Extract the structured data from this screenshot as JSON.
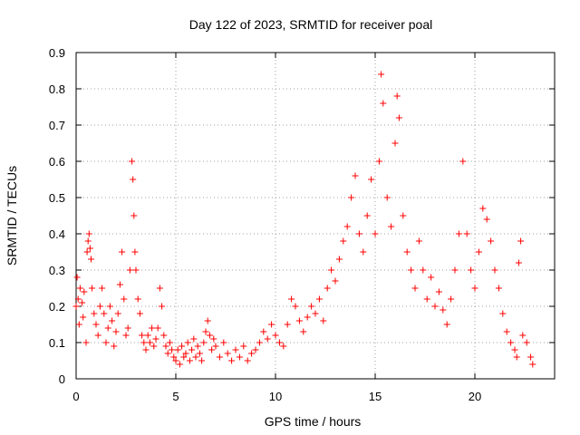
{
  "chart_data": {
    "type": "scatter",
    "title": "Day 122 of 2023, SRMTID for receiver poal",
    "xlabel": "GPS time / hours",
    "ylabel": "SRMTID / TECUs",
    "xlim": [
      0,
      24
    ],
    "ylim": [
      0,
      0.9
    ],
    "xticks": [
      0,
      5,
      10,
      15,
      20
    ],
    "yticks": [
      0,
      0.1,
      0.2,
      0.3,
      0.4,
      0.5,
      0.6,
      0.7,
      0.8,
      0.9
    ],
    "ytick_labels": [
      "0",
      "0.1",
      "0.2",
      "0.3",
      "0.4",
      "0.5",
      "0.6",
      "0.7",
      "0.8",
      "0.9"
    ],
    "grid": true,
    "marker": "+",
    "color": "#ff0000",
    "series": [
      {
        "name": "SRMTID",
        "points": [
          [
            0.0,
            0.2
          ],
          [
            0.05,
            0.28
          ],
          [
            0.1,
            0.22
          ],
          [
            0.15,
            0.15
          ],
          [
            0.2,
            0.25
          ],
          [
            0.3,
            0.21
          ],
          [
            0.35,
            0.17
          ],
          [
            0.4,
            0.24
          ],
          [
            0.5,
            0.1
          ],
          [
            0.55,
            0.35
          ],
          [
            0.6,
            0.38
          ],
          [
            0.65,
            0.4
          ],
          [
            0.7,
            0.36
          ],
          [
            0.75,
            0.33
          ],
          [
            0.8,
            0.25
          ],
          [
            0.9,
            0.18
          ],
          [
            1.0,
            0.15
          ],
          [
            1.1,
            0.12
          ],
          [
            1.2,
            0.2
          ],
          [
            1.3,
            0.25
          ],
          [
            1.4,
            0.18
          ],
          [
            1.5,
            0.1
          ],
          [
            1.6,
            0.14
          ],
          [
            1.7,
            0.2
          ],
          [
            1.8,
            0.16
          ],
          [
            1.9,
            0.09
          ],
          [
            2.0,
            0.13
          ],
          [
            2.1,
            0.18
          ],
          [
            2.2,
            0.26
          ],
          [
            2.3,
            0.35
          ],
          [
            2.4,
            0.22
          ],
          [
            2.5,
            0.12
          ],
          [
            2.6,
            0.14
          ],
          [
            2.7,
            0.3
          ],
          [
            2.8,
            0.6
          ],
          [
            2.85,
            0.55
          ],
          [
            2.9,
            0.45
          ],
          [
            2.95,
            0.35
          ],
          [
            3.0,
            0.3
          ],
          [
            3.1,
            0.22
          ],
          [
            3.2,
            0.18
          ],
          [
            3.3,
            0.12
          ],
          [
            3.4,
            0.1
          ],
          [
            3.5,
            0.08
          ],
          [
            3.6,
            0.12
          ],
          [
            3.7,
            0.1
          ],
          [
            3.8,
            0.14
          ],
          [
            3.9,
            0.09
          ],
          [
            4.0,
            0.11
          ],
          [
            4.1,
            0.14
          ],
          [
            4.2,
            0.25
          ],
          [
            4.3,
            0.2
          ],
          [
            4.4,
            0.12
          ],
          [
            4.5,
            0.09
          ],
          [
            4.6,
            0.07
          ],
          [
            4.7,
            0.1
          ],
          [
            4.8,
            0.08
          ],
          [
            4.9,
            0.06
          ],
          [
            5.0,
            0.05
          ],
          [
            5.1,
            0.08
          ],
          [
            5.2,
            0.04
          ],
          [
            5.3,
            0.09
          ],
          [
            5.4,
            0.06
          ],
          [
            5.5,
            0.07
          ],
          [
            5.6,
            0.1
          ],
          [
            5.7,
            0.05
          ],
          [
            5.8,
            0.08
          ],
          [
            5.9,
            0.11
          ],
          [
            6.0,
            0.06
          ],
          [
            6.1,
            0.09
          ],
          [
            6.2,
            0.07
          ],
          [
            6.3,
            0.05
          ],
          [
            6.4,
            0.1
          ],
          [
            6.5,
            0.13
          ],
          [
            6.6,
            0.16
          ],
          [
            6.7,
            0.12
          ],
          [
            6.8,
            0.08
          ],
          [
            6.9,
            0.11
          ],
          [
            7.0,
            0.09
          ],
          [
            7.2,
            0.06
          ],
          [
            7.4,
            0.1
          ],
          [
            7.6,
            0.07
          ],
          [
            7.8,
            0.05
          ],
          [
            8.0,
            0.08
          ],
          [
            8.2,
            0.06
          ],
          [
            8.4,
            0.09
          ],
          [
            8.6,
            0.05
          ],
          [
            8.8,
            0.07
          ],
          [
            9.0,
            0.08
          ],
          [
            9.2,
            0.1
          ],
          [
            9.4,
            0.13
          ],
          [
            9.6,
            0.11
          ],
          [
            9.8,
            0.15
          ],
          [
            10.0,
            0.12
          ],
          [
            10.2,
            0.1
          ],
          [
            10.4,
            0.09
          ],
          [
            10.6,
            0.15
          ],
          [
            10.8,
            0.22
          ],
          [
            11.0,
            0.2
          ],
          [
            11.2,
            0.16
          ],
          [
            11.4,
            0.13
          ],
          [
            11.6,
            0.17
          ],
          [
            11.8,
            0.2
          ],
          [
            12.0,
            0.18
          ],
          [
            12.2,
            0.22
          ],
          [
            12.4,
            0.16
          ],
          [
            12.6,
            0.25
          ],
          [
            12.8,
            0.3
          ],
          [
            13.0,
            0.27
          ],
          [
            13.2,
            0.33
          ],
          [
            13.4,
            0.38
          ],
          [
            13.6,
            0.42
          ],
          [
            13.8,
            0.5
          ],
          [
            14.0,
            0.56
          ],
          [
            14.2,
            0.4
          ],
          [
            14.4,
            0.35
          ],
          [
            14.6,
            0.45
          ],
          [
            14.8,
            0.55
          ],
          [
            15.0,
            0.4
          ],
          [
            15.2,
            0.6
          ],
          [
            15.3,
            0.84
          ],
          [
            15.4,
            0.76
          ],
          [
            15.6,
            0.5
          ],
          [
            15.8,
            0.42
          ],
          [
            16.0,
            0.65
          ],
          [
            16.1,
            0.78
          ],
          [
            16.2,
            0.72
          ],
          [
            16.4,
            0.45
          ],
          [
            16.6,
            0.35
          ],
          [
            16.8,
            0.3
          ],
          [
            17.0,
            0.25
          ],
          [
            17.2,
            0.38
          ],
          [
            17.4,
            0.3
          ],
          [
            17.6,
            0.22
          ],
          [
            17.8,
            0.28
          ],
          [
            18.0,
            0.2
          ],
          [
            18.2,
            0.24
          ],
          [
            18.4,
            0.19
          ],
          [
            18.6,
            0.15
          ],
          [
            18.8,
            0.22
          ],
          [
            19.0,
            0.3
          ],
          [
            19.2,
            0.4
          ],
          [
            19.4,
            0.6
          ],
          [
            19.6,
            0.4
          ],
          [
            19.8,
            0.3
          ],
          [
            20.0,
            0.25
          ],
          [
            20.2,
            0.35
          ],
          [
            20.4,
            0.47
          ],
          [
            20.6,
            0.44
          ],
          [
            20.8,
            0.38
          ],
          [
            21.0,
            0.3
          ],
          [
            21.2,
            0.25
          ],
          [
            21.4,
            0.18
          ],
          [
            21.6,
            0.13
          ],
          [
            21.8,
            0.1
          ],
          [
            22.0,
            0.08
          ],
          [
            22.1,
            0.06
          ],
          [
            22.2,
            0.32
          ],
          [
            22.3,
            0.38
          ],
          [
            22.4,
            0.12
          ],
          [
            22.6,
            0.1
          ],
          [
            22.8,
            0.06
          ],
          [
            22.9,
            0.04
          ]
        ]
      }
    ]
  }
}
